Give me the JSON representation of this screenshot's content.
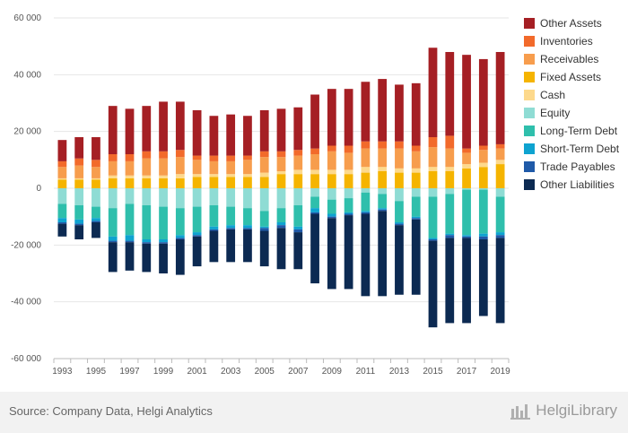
{
  "chart_data": {
    "type": "bar",
    "stacked": true,
    "categories": [
      "1993",
      "1994",
      "1995",
      "1996",
      "1997",
      "1998",
      "1999",
      "2000",
      "2001",
      "2002",
      "2003",
      "2004",
      "2005",
      "2006",
      "2007",
      "2008",
      "2009",
      "2010",
      "2011",
      "2012",
      "2013",
      "2014",
      "2015",
      "2016",
      "2017",
      "2018",
      "2019"
    ],
    "x_tick_labels": [
      "1993",
      "1995",
      "1997",
      "1999",
      "2001",
      "2003",
      "2005",
      "2007",
      "2009",
      "2011",
      "2013",
      "2015",
      "2017",
      "2019"
    ],
    "y_tick_labels": [
      "60 000",
      "40 000",
      "20 000",
      "0",
      "-20 000",
      "-40 000",
      "-60 000"
    ],
    "y_ticks": [
      60000,
      40000,
      20000,
      0,
      -20000,
      -40000,
      -60000
    ],
    "ylim": [
      -60000,
      60000
    ],
    "grid": true,
    "legend_position": "right",
    "positive_series": [
      {
        "name": "Fixed Assets",
        "color": "#f5b400",
        "values": [
          3000,
          3000,
          3000,
          3500,
          3500,
          3500,
          3500,
          3500,
          4000,
          4000,
          4000,
          4000,
          4000,
          5000,
          5000,
          5000,
          5000,
          5000,
          5500,
          6000,
          5500,
          5500,
          6000,
          6000,
          7000,
          7500,
          8500
        ]
      },
      {
        "name": "Cash",
        "color": "#fdd98c",
        "values": [
          500,
          500,
          500,
          1000,
          1000,
          1000,
          1000,
          1500,
          1000,
          1000,
          1000,
          1000,
          1500,
          1000,
          1500,
          1500,
          1500,
          1500,
          2000,
          1500,
          1500,
          1500,
          1500,
          1500,
          1500,
          1500,
          1500
        ]
      },
      {
        "name": "Receivables",
        "color": "#f79d4d",
        "values": [
          4000,
          4500,
          4000,
          5000,
          5000,
          6000,
          6000,
          6000,
          5000,
          4500,
          4500,
          5000,
          5500,
          5000,
          5000,
          5500,
          6500,
          6000,
          6500,
          6500,
          7000,
          6000,
          7000,
          6500,
          4000,
          4500,
          4000
        ]
      },
      {
        "name": "Inventories",
        "color": "#f26a2b",
        "values": [
          2000,
          2500,
          2500,
          2500,
          2500,
          2500,
          2500,
          2500,
          1500,
          2000,
          2000,
          1500,
          2000,
          2000,
          2000,
          2000,
          2000,
          2500,
          2500,
          2500,
          2500,
          2000,
          3500,
          4500,
          1500,
          1500,
          1500
        ]
      },
      {
        "name": "Other Assets",
        "color": "#a51f24",
        "values": [
          7500,
          7500,
          8000,
          17000,
          16000,
          16000,
          17500,
          17000,
          16000,
          14000,
          14500,
          14000,
          14500,
          15000,
          15000,
          19000,
          20000,
          20000,
          21000,
          22000,
          20000,
          22000,
          31500,
          29500,
          33000,
          30500,
          32500
        ]
      }
    ],
    "negative_series": [
      {
        "name": "Equity",
        "color": "#8fdcd4",
        "values": [
          -5500,
          -6000,
          -6500,
          -7000,
          -5500,
          -6000,
          -6500,
          -7000,
          -6500,
          -6000,
          -6500,
          -7000,
          -8000,
          -7000,
          -6000,
          -3000,
          -4000,
          -3500,
          -1500,
          -2000,
          -4500,
          -3000,
          -3000,
          -2000,
          -500,
          -500,
          -3000
        ]
      },
      {
        "name": "Long-Term Debt",
        "color": "#2fbfac",
        "values": [
          -5000,
          -5000,
          -4000,
          -10000,
          -11000,
          -12000,
          -11500,
          -9500,
          -9000,
          -7500,
          -6500,
          -6000,
          -5500,
          -5000,
          -7500,
          -4000,
          -5000,
          -5000,
          -6500,
          -5000,
          -7500,
          -7000,
          -14500,
          -14000,
          -16000,
          -15500,
          -12500
        ]
      },
      {
        "name": "Short-Term Debt",
        "color": "#0ea3d0",
        "values": [
          -1500,
          -1500,
          -1000,
          -1500,
          -2000,
          -1000,
          -1000,
          -1000,
          -1000,
          -1000,
          -1000,
          -1000,
          -500,
          -1000,
          -1000,
          -1500,
          -1000,
          -500,
          -500,
          -500,
          -500,
          -500,
          -500,
          -500,
          -500,
          -1000,
          -1000
        ]
      },
      {
        "name": "Trade Payables",
        "color": "#1f5aa8",
        "values": [
          -500,
          -500,
          -500,
          -500,
          -500,
          -500,
          -500,
          -500,
          -500,
          -500,
          -500,
          -500,
          -1000,
          -1000,
          -1000,
          -500,
          -500,
          -500,
          -500,
          -500,
          -500,
          -500,
          -500,
          -1000,
          -500,
          -1000,
          -1000
        ]
      },
      {
        "name": "Other Liabilities",
        "color": "#0c2a52",
        "values": [
          -4500,
          -5000,
          -5500,
          -10500,
          -10000,
          -10000,
          -10500,
          -12500,
          -10500,
          -11000,
          -11500,
          -11500,
          -12500,
          -14500,
          -13000,
          -24500,
          -25000,
          -26000,
          -29000,
          -30000,
          -24500,
          -26500,
          -30500,
          -30000,
          -30000,
          -27000,
          -30000
        ]
      }
    ],
    "legend": [
      {
        "name": "Other Assets",
        "color": "#a51f24"
      },
      {
        "name": "Inventories",
        "color": "#f26a2b"
      },
      {
        "name": "Receivables",
        "color": "#f79d4d"
      },
      {
        "name": "Fixed Assets",
        "color": "#f5b400"
      },
      {
        "name": "Cash",
        "color": "#fdd98c"
      },
      {
        "name": "Equity",
        "color": "#8fdcd4"
      },
      {
        "name": "Long-Term Debt",
        "color": "#2fbfac"
      },
      {
        "name": "Short-Term Debt",
        "color": "#0ea3d0"
      },
      {
        "name": "Trade Payables",
        "color": "#1f5aa8"
      },
      {
        "name": "Other Liabilities",
        "color": "#0c2a52"
      }
    ]
  },
  "footer": {
    "source": "Source: Company Data, Helgi Analytics",
    "brand": "HelgiLibrary"
  }
}
